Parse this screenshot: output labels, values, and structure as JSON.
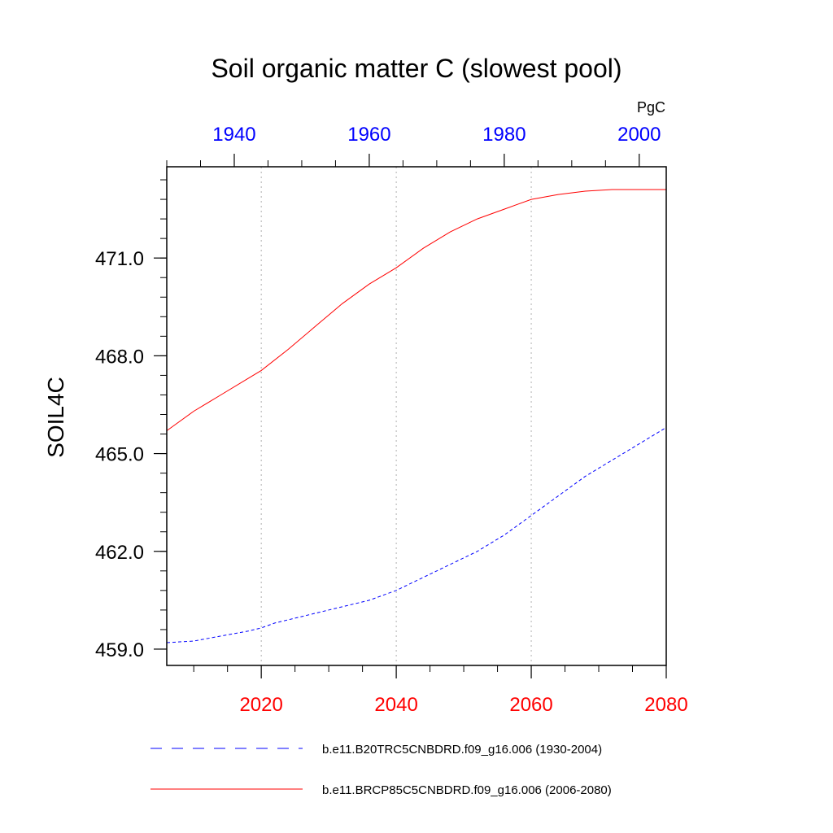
{
  "chart_data": {
    "type": "line",
    "title": "Soil organic matter C (slowest pool)",
    "units": "PgC",
    "ylabel": "SOIL4C",
    "xlabel": "",
    "ylim": [
      458.5,
      473.8
    ],
    "yticks": [
      459.0,
      462.0,
      465.0,
      468.0,
      471.0
    ],
    "ytick_labels": [
      "459.0",
      "462.0",
      "465.0",
      "468.0",
      "471.0"
    ],
    "x_bottom": {
      "range": [
        2006,
        2080
      ],
      "ticks": [
        2020,
        2040,
        2060,
        2080
      ],
      "tick_labels": [
        "2020",
        "2040",
        "2060",
        "2080"
      ],
      "color": "#ff0000"
    },
    "x_top": {
      "range": [
        1930,
        2004
      ],
      "ticks": [
        1940,
        1960,
        1980,
        2000
      ],
      "tick_labels": [
        "1940",
        "1960",
        "1980",
        "2000"
      ],
      "color": "#0000ff"
    },
    "grid": "vertical dotted at bottom-axis major ticks",
    "legend_position": "bottom",
    "series": [
      {
        "name": "b.e11.B20TRC5CNBDRD.f09_g16.006 (1930-2004)",
        "axis": "top",
        "color": "#0000ff",
        "dash": "dashed",
        "x": [
          1930,
          1934,
          1938,
          1942,
          1944,
          1946,
          1948,
          1952,
          1956,
          1960,
          1964,
          1968,
          1972,
          1976,
          1980,
          1984,
          1988,
          1992,
          1996,
          2000,
          2004
        ],
        "y": [
          459.2,
          459.25,
          459.4,
          459.55,
          459.65,
          459.8,
          459.9,
          460.1,
          460.3,
          460.5,
          460.8,
          461.2,
          461.6,
          462.0,
          462.5,
          463.1,
          463.7,
          464.3,
          464.8,
          465.3,
          465.8
        ]
      },
      {
        "name": "b.e11.BRCP85C5CNBDRD.f09_g16.006 (2006-2080)",
        "axis": "bottom",
        "color": "#ff0000",
        "dash": "solid",
        "x": [
          2006,
          2010,
          2014,
          2018,
          2020,
          2024,
          2028,
          2032,
          2036,
          2040,
          2044,
          2048,
          2052,
          2056,
          2060,
          2064,
          2068,
          2072,
          2076,
          2080
        ],
        "y": [
          465.7,
          466.3,
          466.8,
          467.3,
          467.55,
          468.2,
          468.9,
          469.6,
          470.2,
          470.7,
          471.3,
          471.8,
          472.2,
          472.5,
          472.8,
          472.95,
          473.05,
          473.1,
          473.1,
          473.1
        ]
      }
    ]
  }
}
